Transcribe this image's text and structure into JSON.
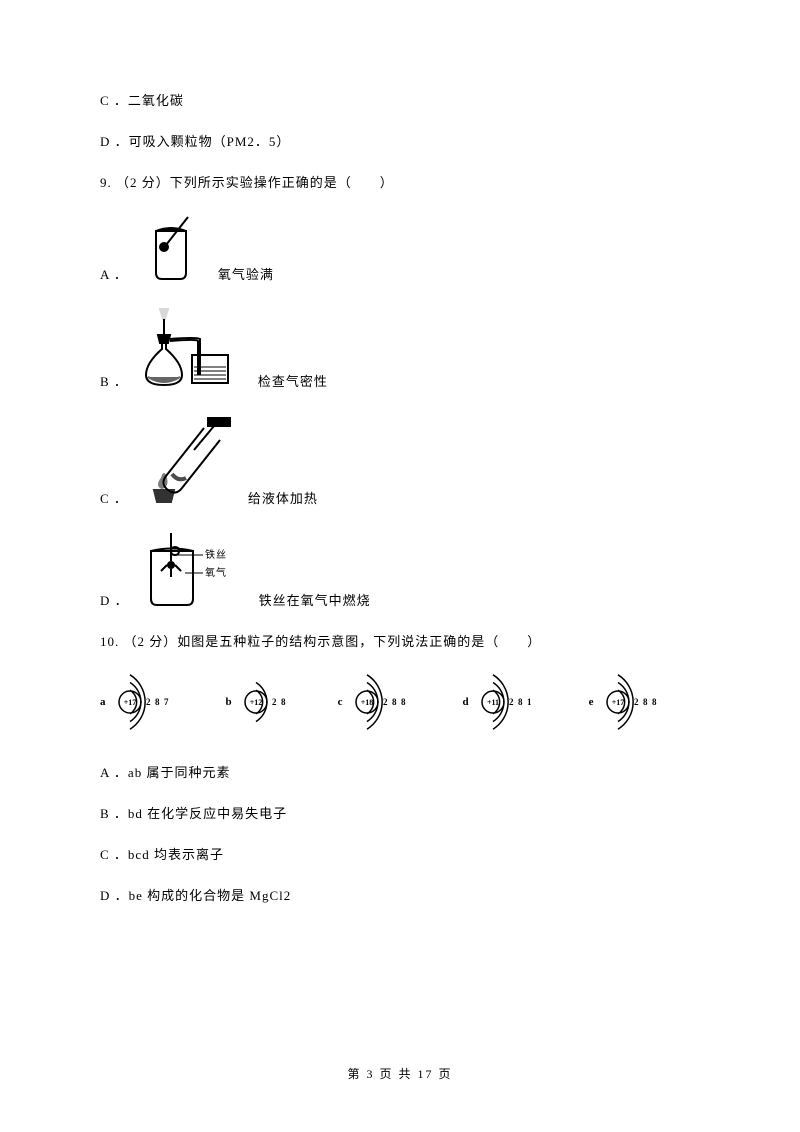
{
  "q_prev": {
    "option_c": "C ．二氧化碳",
    "option_d": "D ．可吸入颗粒物（PM2．5）"
  },
  "q9": {
    "stem": "9. （2 分）下列所示实验操作正确的是（　　）",
    "a_label": "A ．",
    "a_text": "氧气验满",
    "b_label": "B ．",
    "b_text": "检查气密性",
    "c_label": "C ．",
    "c_text": "给液体加热",
    "d_label": "D ．",
    "d_text": "铁丝在氧气中燃烧",
    "d_anno1": "铁丝",
    "d_anno2": "氧气"
  },
  "q10": {
    "stem": "10. （2 分）如图是五种粒子的结构示意图，下列说法正确的是（　　）",
    "atoms": [
      {
        "letter": "a",
        "nucleus": "+17",
        "shells": "2 8 7"
      },
      {
        "letter": "b",
        "nucleus": "+12",
        "shells": "2 8"
      },
      {
        "letter": "c",
        "nucleus": "+18",
        "shells": "2 8 8"
      },
      {
        "letter": "d",
        "nucleus": "+11",
        "shells": "2 8 1"
      },
      {
        "letter": "e",
        "nucleus": "+17",
        "shells": "2 8 8"
      }
    ],
    "option_a": "A ．ab 属于同种元素",
    "option_b": "B ．bd 在化学反应中易失电子",
    "option_c": "C ．bcd 均表示离子",
    "option_d": "D ．be 构成的化合物是 MgCl2"
  },
  "footer": "第 3 页 共 17 页",
  "colors": {
    "text": "#000000",
    "bg": "#ffffff",
    "stroke": "#000000"
  }
}
